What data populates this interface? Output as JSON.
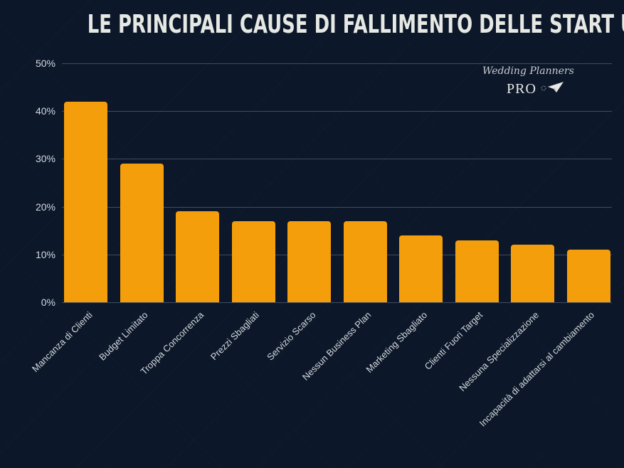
{
  "title": "LE PRINCIPALI CAUSE DI FALLIMENTO DELLE START UP",
  "logo": {
    "script_text": "Wedding Planners",
    "pro_text": "PRO"
  },
  "colors": {
    "background": "#0c1729",
    "bar": "#f59e0b",
    "text": "#d4d8df",
    "title": "#e6e8e4"
  },
  "y_ticks": [
    "0%",
    "10%",
    "20%",
    "30%",
    "40%",
    "50%"
  ],
  "chart_data": {
    "type": "bar",
    "title": "LE PRINCIPALI CAUSE DI FALLIMENTO DELLE START UP",
    "xlabel": "",
    "ylabel": "",
    "categories": [
      "Mancanza di Clienti",
      "Budget Limitato",
      "Troppa Concorrenza",
      "Prezzi Sbagliati",
      "Servizio Scarso",
      "Nessun Business Plan",
      "Marketing Sbagliato",
      "Clienti Fuori Target",
      "Nessuna Specializzazione",
      "Incapacità di adattarsi al cambiamento"
    ],
    "values": [
      42,
      29,
      19,
      17,
      17,
      17,
      14,
      13,
      12,
      11
    ],
    "unit": "%",
    "ylim": [
      0,
      50
    ],
    "y_tick_step": 10,
    "grid": true,
    "legend": "none"
  }
}
